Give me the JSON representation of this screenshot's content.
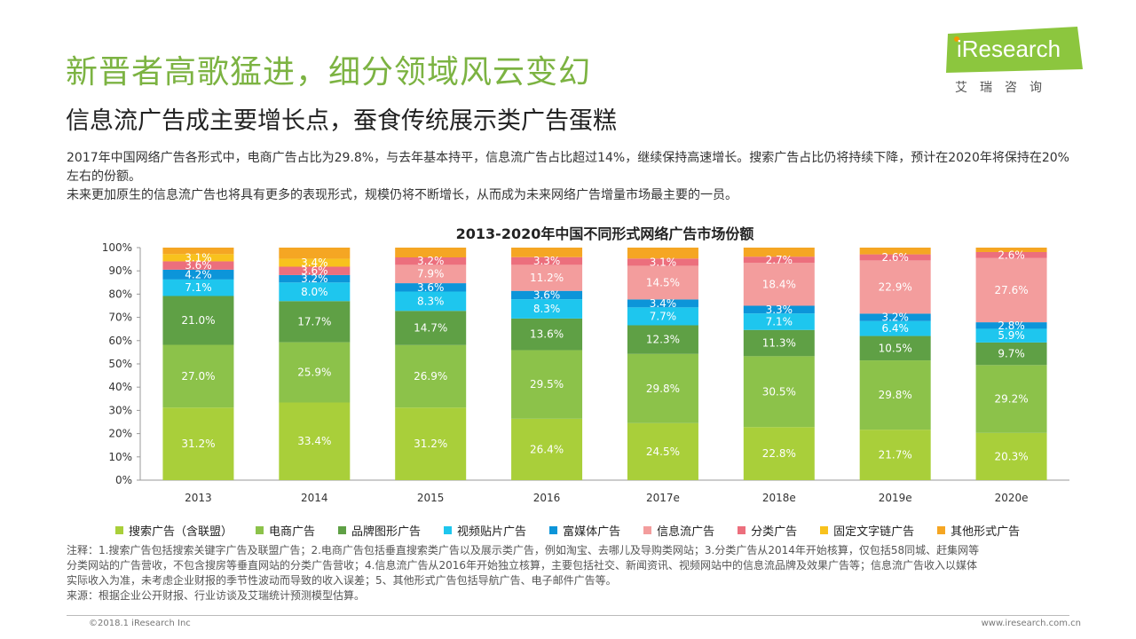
{
  "header": {
    "title": "新晋者高歌猛进，细分领域风云变幻",
    "subtitle": "信息流广告成主要增长点，蚕食传统展示类广告蛋糕"
  },
  "intro": {
    "line1": "2017年中国网络广告各形式中，电商广告占比为29.8%，与去年基本持平，信息流广告占比超过14%，继续保持高速增长。搜索广告占比仍将持续下降，预计在2020年将保持在20%左右的份额。",
    "line2": "未来更加原生的信息流广告也将具有更多的表现形式，规模仍将不断增长，从而成为未来网络广告增量市场最主要的一员。"
  },
  "logo": {
    "wordmark": "iResearch",
    "cn": "艾瑞咨询"
  },
  "chart_data": {
    "type": "stacked-bar-100",
    "title": "2013-2020年中国不同形式网络广告市场份额",
    "categories": [
      "2013",
      "2014",
      "2015",
      "2016",
      "2017e",
      "2018e",
      "2019e",
      "2020e"
    ],
    "ylim": [
      0,
      100
    ],
    "yticks": [
      "0%",
      "10%",
      "20%",
      "30%",
      "40%",
      "50%",
      "60%",
      "70%",
      "80%",
      "90%",
      "100%"
    ],
    "legend_position": "bottom",
    "series": [
      {
        "name": "搜索广告（含联盟）",
        "color": "#a9cf3a",
        "values": [
          31.2,
          33.4,
          31.2,
          26.4,
          24.5,
          22.8,
          21.7,
          20.3
        ]
      },
      {
        "name": "电商广告",
        "color": "#8cc24a",
        "values": [
          27.0,
          25.9,
          26.9,
          29.5,
          29.8,
          30.5,
          29.8,
          29.2
        ]
      },
      {
        "name": "品牌图形广告",
        "color": "#5fa045",
        "values": [
          21.0,
          17.7,
          14.7,
          13.6,
          12.3,
          11.3,
          10.5,
          9.7
        ]
      },
      {
        "name": "视频贴片广告",
        "color": "#1ec6ee",
        "values": [
          7.1,
          8.0,
          8.3,
          8.3,
          7.7,
          7.1,
          6.4,
          5.9
        ]
      },
      {
        "name": "富媒体广告",
        "color": "#0c95d9",
        "values": [
          4.2,
          3.2,
          3.6,
          3.6,
          3.4,
          3.3,
          3.2,
          2.8
        ]
      },
      {
        "name": "信息流广告",
        "color": "#f39d9d",
        "values": [
          null,
          null,
          7.9,
          11.2,
          14.5,
          18.4,
          22.9,
          27.6
        ]
      },
      {
        "name": "分类广告",
        "color": "#ec6f7d",
        "values": [
          3.6,
          3.6,
          3.2,
          3.3,
          3.1,
          2.7,
          2.6,
          2.6
        ]
      },
      {
        "name": "固定文字链广告",
        "color": "#f8c21d",
        "values": [
          3.1,
          3.4,
          null,
          null,
          null,
          null,
          null,
          null
        ]
      },
      {
        "name": "其他形式广告",
        "color": "#f5a623",
        "values": [
          null,
          null,
          null,
          null,
          null,
          null,
          null,
          null
        ]
      }
    ],
    "labels": [
      [
        {
          "series": 0,
          "text": "31.2%"
        },
        {
          "series": 1,
          "text": "27.0%"
        },
        {
          "series": 2,
          "text": "21.0%"
        },
        {
          "series": 3,
          "text": "7.1%"
        },
        {
          "series": 4,
          "text": "4.2%"
        },
        {
          "series": 6,
          "text": "3.6%"
        },
        {
          "series": 7,
          "text": "3.1%"
        }
      ],
      [
        {
          "series": 0,
          "text": "33.4%"
        },
        {
          "series": 1,
          "text": "25.9%"
        },
        {
          "series": 2,
          "text": "17.7%"
        },
        {
          "series": 3,
          "text": "8.0%"
        },
        {
          "series": 4,
          "text": "3.2%"
        },
        {
          "series": 6,
          "text": "3.6%"
        },
        {
          "series": 7,
          "text": "3.4%"
        }
      ],
      [
        {
          "series": 0,
          "text": "31.2%"
        },
        {
          "series": 1,
          "text": "26.9%"
        },
        {
          "series": 2,
          "text": "14.7%"
        },
        {
          "series": 3,
          "text": "8.3%"
        },
        {
          "series": 4,
          "text": "3.6%"
        },
        {
          "series": 5,
          "text": "7.9%"
        },
        {
          "series": 6,
          "text": "3.2%"
        }
      ],
      [
        {
          "series": 0,
          "text": "26.4%"
        },
        {
          "series": 1,
          "text": "29.5%"
        },
        {
          "series": 2,
          "text": "13.6%"
        },
        {
          "series": 3,
          "text": "8.3%"
        },
        {
          "series": 4,
          "text": "3.6%"
        },
        {
          "series": 5,
          "text": "11.2%"
        },
        {
          "series": 6,
          "text": "3.3%"
        }
      ],
      [
        {
          "series": 0,
          "text": "24.5%"
        },
        {
          "series": 1,
          "text": "29.8%"
        },
        {
          "series": 2,
          "text": "12.3%"
        },
        {
          "series": 3,
          "text": "7.7%"
        },
        {
          "series": 4,
          "text": "3.4%"
        },
        {
          "series": 5,
          "text": "14.5%"
        },
        {
          "series": 6,
          "text": "3.1%"
        }
      ],
      [
        {
          "series": 0,
          "text": "22.8%"
        },
        {
          "series": 1,
          "text": "30.5%"
        },
        {
          "series": 2,
          "text": "11.3%"
        },
        {
          "series": 3,
          "text": "7.1%"
        },
        {
          "series": 4,
          "text": "3.3%"
        },
        {
          "series": 5,
          "text": "18.4%"
        },
        {
          "series": 6,
          "text": "2.7%"
        }
      ],
      [
        {
          "series": 0,
          "text": "21.7%"
        },
        {
          "series": 1,
          "text": "29.8%"
        },
        {
          "series": 2,
          "text": "10.5%"
        },
        {
          "series": 3,
          "text": "6.4%"
        },
        {
          "series": 4,
          "text": "3.2%"
        },
        {
          "series": 5,
          "text": "22.9%"
        },
        {
          "series": 6,
          "text": "2.6%"
        }
      ],
      [
        {
          "series": 0,
          "text": "20.3%"
        },
        {
          "series": 1,
          "text": "29.2%"
        },
        {
          "series": 2,
          "text": "9.7%"
        },
        {
          "series": 3,
          "text": "5.9%"
        },
        {
          "series": 4,
          "text": "2.8%"
        },
        {
          "series": 5,
          "text": "27.6%"
        },
        {
          "series": 6,
          "text": "2.6%"
        }
      ]
    ]
  },
  "notes": {
    "line1": "注释：1.搜索广告包括搜索关键字广告及联盟广告；2.电商广告包括垂直搜索类广告以及展示类广告，例如淘宝、去哪儿及导购类网站；3.分类广告从2014年开始核算，仅包括58同城、赶集网等",
    "line2": "分类网站的广告营收，不包含搜房等垂直网站的分类广告营收；4.信息流广告从2016年开始独立核算，主要包括社交、新闻资讯、视频网站中的信息流品牌及效果广告等；信息流广告收入以媒体",
    "line3": "实际收入为准，未考虑企业财报的季节性波动而导致的收入误差；5、其他形式广告包括导航广告、电子邮件广告等。",
    "source": "来源：根据企业公开财报、行业访谈及艾瑞统计预测模型估算。"
  },
  "footer": {
    "copyright": "©2018.1 iResearch Inc",
    "url": "www.iresearch.com.cn"
  }
}
